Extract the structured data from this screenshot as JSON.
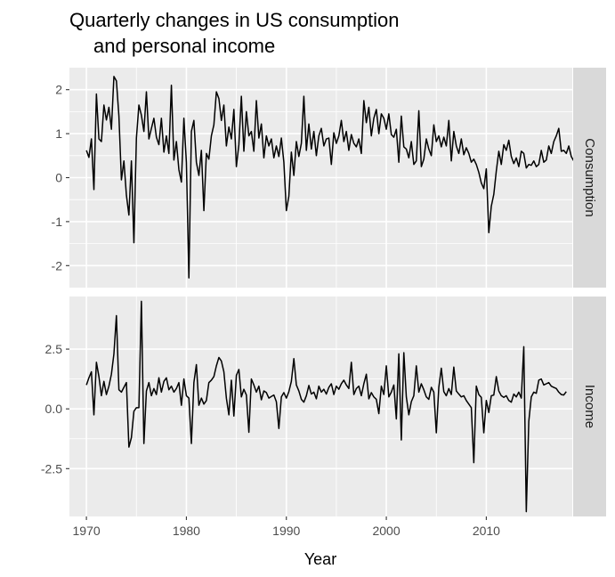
{
  "chart_data": {
    "type": "line",
    "title": [
      "Quarterly changes in US consumption",
      "and personal income"
    ],
    "xlabel": "Year",
    "ylabel": "",
    "xlim": [
      1968.3,
      2018.6
    ],
    "x_ticks": [
      1970,
      1980,
      1990,
      2000,
      2010
    ],
    "x_tick_labels": [
      "1970",
      "1980",
      "1990",
      "2000",
      "2010"
    ],
    "grid": true,
    "facet": "rows",
    "x_start": 1970.0,
    "x_step": 0.25,
    "panels": [
      {
        "name": "Consumption",
        "ylim": [
          -2.5,
          2.5
        ],
        "y_ticks": [
          -2,
          -1,
          0,
          1,
          2
        ],
        "y_tick_labels": [
          "-2",
          "-1",
          "0",
          "1",
          "2"
        ],
        "values": [
          0.62,
          0.46,
          0.88,
          -0.27,
          1.9,
          0.88,
          0.82,
          1.65,
          1.31,
          1.6,
          1.1,
          2.3,
          2.2,
          1.4,
          -0.05,
          0.38,
          -0.4,
          -0.85,
          0.38,
          -1.48,
          0.9,
          1.65,
          1.42,
          1.05,
          1.95,
          0.88,
          1.12,
          1.35,
          0.92,
          0.75,
          1.35,
          0.58,
          0.95,
          0.55,
          2.1,
          0.4,
          0.82,
          0.18,
          -0.1,
          1.35,
          0.35,
          -2.28,
          1.05,
          1.3,
          0.35,
          0.05,
          0.62,
          -0.75,
          0.55,
          0.42,
          0.95,
          1.2,
          1.95,
          1.8,
          1.3,
          1.65,
          0.72,
          1.15,
          0.88,
          1.55,
          0.25,
          0.75,
          1.85,
          0.6,
          1.5,
          0.95,
          1.05,
          0.6,
          1.75,
          0.9,
          1.22,
          0.45,
          0.95,
          0.72,
          0.88,
          0.45,
          0.72,
          0.48,
          0.9,
          0.35,
          -0.75,
          -0.42,
          0.58,
          0.05,
          0.82,
          0.48,
          0.78,
          1.85,
          0.62,
          1.22,
          0.65,
          1.05,
          0.5,
          0.95,
          1.12,
          0.72,
          0.88,
          0.9,
          0.3,
          1.02,
          0.78,
          0.95,
          1.3,
          0.82,
          1.05,
          0.62,
          0.98,
          0.78,
          0.7,
          0.88,
          0.55,
          1.75,
          1.25,
          1.6,
          0.95,
          1.35,
          1.55,
          1.0,
          1.45,
          1.35,
          1.1,
          1.45,
          0.98,
          0.92,
          1.1,
          0.35,
          1.4,
          0.7,
          0.65,
          0.45,
          0.82,
          0.3,
          0.38,
          1.52,
          0.25,
          0.42,
          0.88,
          0.65,
          0.5,
          1.2,
          0.82,
          0.95,
          0.7,
          0.92,
          0.72,
          1.3,
          0.38,
          1.05,
          0.72,
          0.55,
          0.88,
          0.52,
          0.68,
          0.55,
          0.35,
          0.42,
          0.3,
          0.12,
          -0.12,
          -0.25,
          0.2,
          -1.25,
          -0.65,
          -0.38,
          0.15,
          0.6,
          0.3,
          0.75,
          0.62,
          0.85,
          0.48,
          0.32,
          0.45,
          0.25,
          0.6,
          0.55,
          0.22,
          0.3,
          0.28,
          0.38,
          0.25,
          0.3,
          0.62,
          0.35,
          0.4,
          0.72,
          0.55,
          0.82,
          0.95,
          1.12,
          0.6,
          0.62,
          0.55,
          0.72,
          0.48,
          0.38,
          1.05,
          0.75
        ]
      },
      {
        "name": "Income",
        "ylim": [
          -4.5,
          4.7
        ],
        "y_ticks": [
          -2.5,
          0,
          2.5
        ],
        "y_tick_labels": [
          "-2.5",
          "0.0",
          "2.5"
        ],
        "values": [
          1.0,
          1.3,
          1.55,
          -0.25,
          1.95,
          1.35,
          0.55,
          1.15,
          0.6,
          0.95,
          1.45,
          2.3,
          3.9,
          0.8,
          0.7,
          0.9,
          1.1,
          -1.6,
          -1.2,
          -0.1,
          0.05,
          0.05,
          4.5,
          -1.45,
          0.75,
          1.1,
          0.55,
          0.85,
          0.6,
          1.3,
          0.7,
          1.15,
          1.3,
          0.8,
          0.95,
          0.7,
          0.85,
          1.1,
          0.15,
          1.25,
          0.55,
          0.45,
          -1.45,
          1.1,
          1.85,
          0.15,
          0.45,
          0.2,
          0.35,
          1.1,
          1.2,
          1.35,
          1.8,
          2.15,
          2.0,
          1.55,
          0.45,
          -0.25,
          1.2,
          -0.3,
          1.4,
          1.65,
          0.5,
          0.82,
          0.58,
          -0.98,
          1.25,
          1.0,
          0.7,
          0.95,
          0.38,
          0.75,
          0.68,
          0.45,
          0.52,
          0.58,
          0.3,
          -0.82,
          0.5,
          0.68,
          0.45,
          0.72,
          1.15,
          2.1,
          1.0,
          0.75,
          0.4,
          0.28,
          0.55,
          0.98,
          0.62,
          0.7,
          0.42,
          0.95,
          0.7,
          0.82,
          0.62,
          0.9,
          1.05,
          0.6,
          0.95,
          0.82,
          1.05,
          1.2,
          1.0,
          0.85,
          1.95,
          0.6,
          0.85,
          0.95,
          0.55,
          1.05,
          1.45,
          0.42,
          0.68,
          0.5,
          0.4,
          -0.2,
          0.95,
          0.6,
          1.8,
          0.5,
          0.7,
          1.0,
          -0.42,
          2.3,
          -1.3,
          2.35,
          0.5,
          -0.25,
          0.3,
          0.55,
          1.8,
          0.7,
          1.05,
          0.8,
          0.5,
          0.4,
          0.9,
          0.7,
          -1.0,
          0.9,
          1.7,
          0.72,
          0.55,
          0.85,
          0.6,
          1.75,
          0.75,
          0.62,
          0.5,
          0.55,
          0.35,
          0.2,
          0.05,
          -2.25,
          0.95,
          0.6,
          0.48,
          -1.0,
          0.35,
          -0.15,
          0.55,
          0.58,
          1.35,
          0.75,
          0.55,
          0.48,
          0.55,
          0.35,
          0.28,
          0.62,
          0.5,
          0.7,
          0.45,
          2.6,
          -4.3,
          -0.52,
          0.5,
          0.7,
          0.65,
          1.2,
          1.25,
          1.0,
          1.05,
          1.1,
          0.95,
          0.9,
          0.85,
          0.7,
          0.6,
          0.58,
          0.72
        ]
      }
    ]
  }
}
